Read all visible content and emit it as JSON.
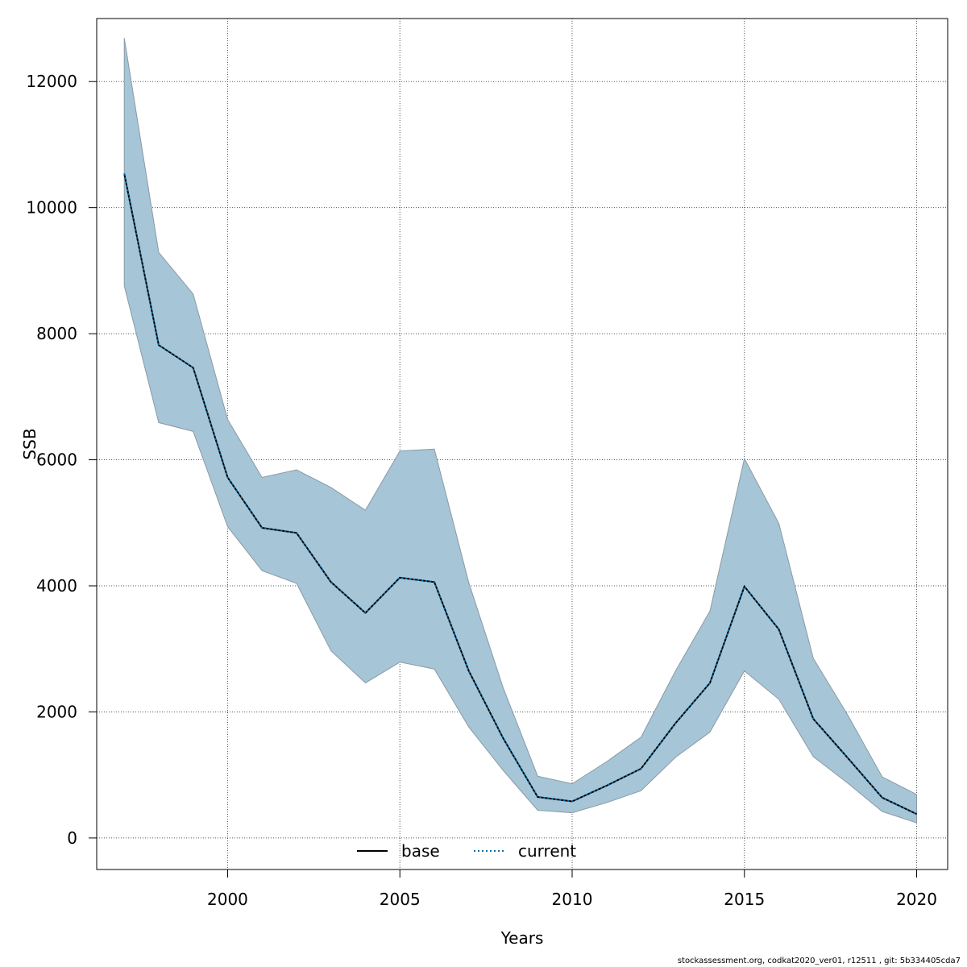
{
  "chart_data": {
    "type": "line",
    "xlabel": "Years",
    "ylabel": "SSB",
    "xlim": [
      1996.2,
      2020.9
    ],
    "ylim": [
      -500,
      13000
    ],
    "x_ticks": [
      2000,
      2005,
      2010,
      2015,
      2020
    ],
    "y_ticks": [
      0,
      2000,
      4000,
      6000,
      8000,
      10000,
      12000
    ],
    "grid": true,
    "legend_position": "bottom",
    "x": [
      1997,
      1998,
      1999,
      2000,
      2001,
      2002,
      2003,
      2004,
      2005,
      2006,
      2007,
      2008,
      2009,
      2010,
      2011,
      2012,
      2013,
      2014,
      2015,
      2016,
      2017,
      2018,
      2019,
      2020
    ],
    "series": [
      {
        "name": "base",
        "style": "solid",
        "color": "#000000",
        "values": [
          10540,
          7820,
          7460,
          5720,
          4920,
          4840,
          4060,
          3570,
          4130,
          4060,
          2650,
          1580,
          650,
          580,
          830,
          1100,
          1820,
          2460,
          3990,
          3310,
          1890,
          1270,
          640,
          380
        ]
      },
      {
        "name": "current",
        "style": "dotted",
        "color": "#0a6fa8",
        "values": [
          10540,
          7820,
          7460,
          5720,
          4920,
          4840,
          4060,
          3570,
          4130,
          4060,
          2650,
          1580,
          650,
          580,
          830,
          1100,
          1820,
          2460,
          3990,
          3310,
          1890,
          1270,
          640,
          380
        ]
      }
    ],
    "confidence_band": {
      "color": "#a6c5d6",
      "lower": [
        8760,
        6590,
        6450,
        4940,
        4240,
        4040,
        2970,
        2460,
        2790,
        2680,
        1760,
        1070,
        440,
        400,
        560,
        750,
        1280,
        1680,
        2650,
        2200,
        1290,
        870,
        420,
        240
      ],
      "upper": [
        12690,
        9290,
        8630,
        6640,
        5720,
        5840,
        5560,
        5200,
        6140,
        6170,
        4050,
        2380,
        980,
        860,
        1210,
        1600,
        2650,
        3600,
        6020,
        4990,
        2850,
        1950,
        970,
        690
      ]
    }
  },
  "footer": "stockassessment.org, codkat2020_ver01, r12511 , git: 5b334405cda7"
}
